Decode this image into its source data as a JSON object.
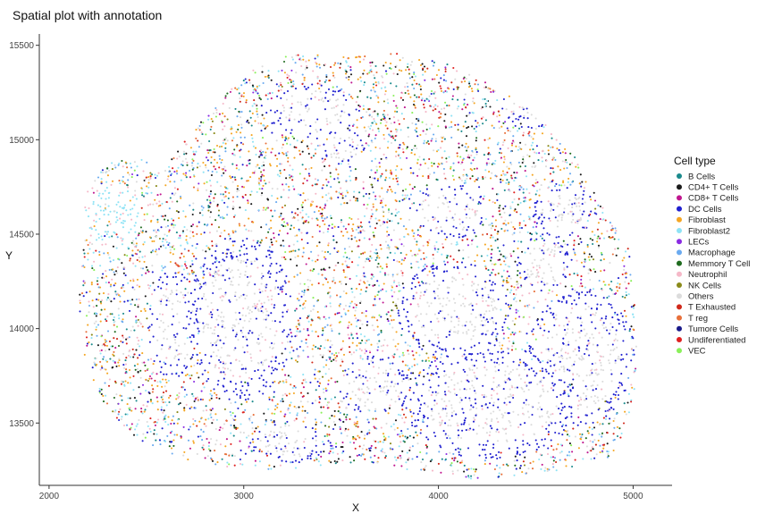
{
  "chart_data": {
    "type": "scatter",
    "title": "Spatial plot with annotation",
    "xlabel": "X",
    "ylabel": "Y",
    "xlim": [
      1950,
      5200
    ],
    "ylim": [
      13170,
      15560
    ],
    "x_ticks": [
      2000,
      3000,
      4000,
      5000
    ],
    "y_ticks": [
      13500,
      14000,
      14500,
      15000,
      15500
    ],
    "grid": false,
    "legend": {
      "title": "Cell type",
      "position": "right",
      "entries": [
        {
          "label": "B Cells",
          "color": "#1a8a8c"
        },
        {
          "label": "CD4+ T Cells",
          "color": "#1a1a1a"
        },
        {
          "label": "CD8+ T Cells",
          "color": "#c0168f"
        },
        {
          "label": "DC Cells",
          "color": "#2020d0"
        },
        {
          "label": "Fibroblast",
          "color": "#f5a623"
        },
        {
          "label": "Fibroblast2",
          "color": "#8fe3f5"
        },
        {
          "label": "LECs",
          "color": "#8a2be2"
        },
        {
          "label": "Macrophage",
          "color": "#6aaaf0"
        },
        {
          "label": "Memmory T Cell",
          "color": "#1f6b1f"
        },
        {
          "label": "Neutrophil",
          "color": "#f5b8c8"
        },
        {
          "label": "NK Cells",
          "color": "#8a8a1a"
        },
        {
          "label": "Others",
          "color": "#dcdcdc"
        },
        {
          "label": "T Exhausted",
          "color": "#d0281a"
        },
        {
          "label": "T reg",
          "color": "#e8703a"
        },
        {
          "label": "Tumore Cells",
          "color": "#1a1a8a"
        },
        {
          "label": "Undiferentiated",
          "color": "#e02020"
        },
        {
          "label": "VEC",
          "color": "#8af05a"
        }
      ]
    },
    "regions": {
      "tissue_outline": [
        [
          2170,
          14420
        ],
        [
          2180,
          14720
        ],
        [
          2290,
          14880
        ],
        [
          2470,
          14900
        ],
        [
          2600,
          14860
        ],
        [
          2830,
          15170
        ],
        [
          3050,
          15380
        ],
        [
          3250,
          15460
        ],
        [
          3550,
          15440
        ],
        [
          3800,
          15460
        ],
        [
          4050,
          15400
        ],
        [
          4300,
          15280
        ],
        [
          4520,
          15120
        ],
        [
          4700,
          14920
        ],
        [
          4820,
          14680
        ],
        [
          4980,
          14420
        ],
        [
          5010,
          14100
        ],
        [
          5020,
          13800
        ],
        [
          4990,
          13500
        ],
        [
          4880,
          13320
        ],
        [
          4600,
          13240
        ],
        [
          4200,
          13200
        ],
        [
          3900,
          13230
        ],
        [
          3700,
          13290
        ],
        [
          3400,
          13270
        ],
        [
          3100,
          13250
        ],
        [
          2850,
          13270
        ],
        [
          2650,
          13320
        ],
        [
          2450,
          13420
        ],
        [
          2300,
          13570
        ],
        [
          2190,
          13800
        ],
        [
          2150,
          14100
        ]
      ],
      "tumor_regions": [
        {
          "cx": 2980,
          "cy": 14050,
          "rx": 270,
          "ry": 420
        },
        {
          "cx": 3230,
          "cy": 13400,
          "rx": 190,
          "ry": 110
        },
        {
          "cx": 4050,
          "cy": 14620,
          "rx": 190,
          "ry": 150
        },
        {
          "cx": 4270,
          "cy": 13600,
          "rx": 430,
          "ry": 280
        },
        {
          "cx": 4720,
          "cy": 13850,
          "rx": 280,
          "ry": 350
        },
        {
          "cx": 3350,
          "cy": 15150,
          "rx": 220,
          "ry": 140
        },
        {
          "cx": 3520,
          "cy": 14950,
          "rx": 110,
          "ry": 100
        },
        {
          "cx": 4550,
          "cy": 14350,
          "rx": 140,
          "ry": 150
        },
        {
          "cx": 4650,
          "cy": 14620,
          "rx": 160,
          "ry": 130
        },
        {
          "cx": 4080,
          "cy": 14100,
          "rx": 280,
          "ry": 250
        },
        {
          "cx": 2640,
          "cy": 14020,
          "rx": 130,
          "ry": 280
        },
        {
          "cx": 4460,
          "cy": 15160,
          "rx": 140,
          "ry": 100
        },
        {
          "cx": 3680,
          "cy": 13690,
          "rx": 180,
          "ry": 160
        }
      ],
      "neutrophil_regions": [
        {
          "cx": 2450,
          "cy": 14600,
          "rx": 120,
          "ry": 90
        },
        {
          "cx": 2560,
          "cy": 14150,
          "rx": 110,
          "ry": 120
        },
        {
          "cx": 4120,
          "cy": 14080,
          "rx": 200,
          "ry": 180
        },
        {
          "cx": 4550,
          "cy": 14100,
          "rx": 130,
          "ry": 150
        },
        {
          "cx": 3650,
          "cy": 13750,
          "rx": 150,
          "ry": 170
        },
        {
          "cx": 4250,
          "cy": 13520,
          "rx": 180,
          "ry": 90
        }
      ],
      "fibroblast2_regions": [
        {
          "cx": 2320,
          "cy": 14600,
          "rx": 160,
          "ry": 180
        }
      ]
    }
  }
}
